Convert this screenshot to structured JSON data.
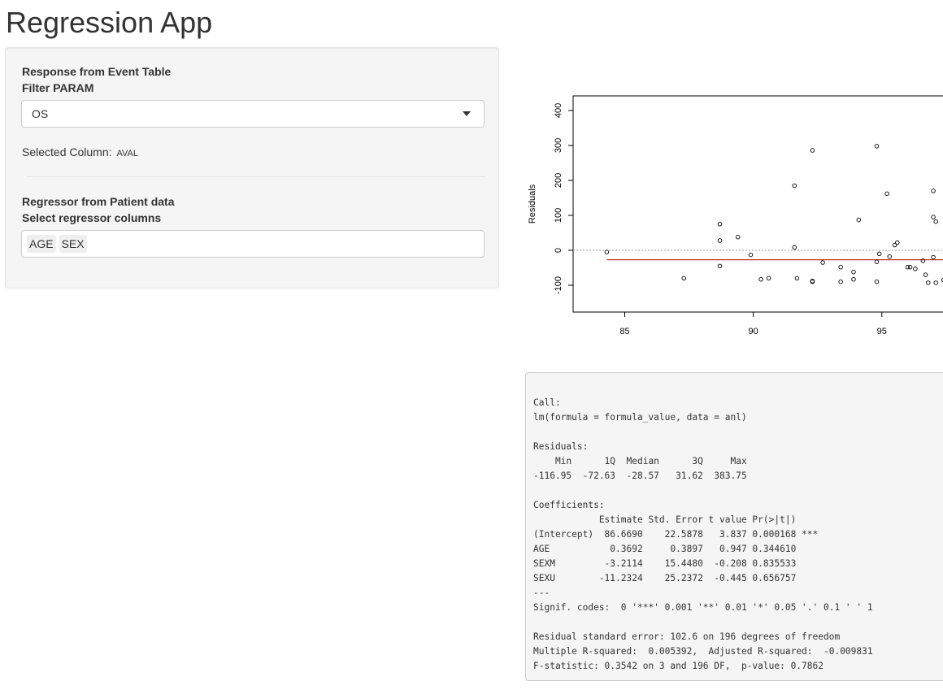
{
  "app": {
    "title": "Regression App"
  },
  "sidebar": {
    "response_label": "Response from Event Table",
    "filter_label": "Filter PARAM",
    "filter_value": "OS",
    "selected_column_label": "Selected Column:",
    "selected_column_value": "AVAL",
    "regressor_label": "Regressor from Patient data",
    "regressor_select_label": "Select regressor columns",
    "regressor_tags": [
      "AGE",
      "SEX"
    ]
  },
  "chart_data": {
    "type": "scatter",
    "title": "",
    "xlabel": "",
    "ylabel": "Residuals",
    "xlim": [
      83,
      97.5
    ],
    "ylim": [
      -130,
      450
    ],
    "x_ticks": [
      85,
      90,
      95
    ],
    "y_ticks": [
      -100,
      0,
      100,
      200,
      300,
      400
    ],
    "reference_line_y": 0,
    "smooth_line_y": -27,
    "series": [
      {
        "points": [
          [
            84.3,
            -5
          ],
          [
            87.3,
            -80
          ],
          [
            88.7,
            75
          ],
          [
            88.7,
            28
          ],
          [
            88.7,
            -45
          ],
          [
            89.4,
            38
          ],
          [
            89.9,
            -13
          ],
          [
            90.3,
            -83
          ],
          [
            90.6,
            -80
          ],
          [
            91.6,
            185
          ],
          [
            91.6,
            8
          ],
          [
            91.7,
            -80
          ],
          [
            92.3,
            286
          ],
          [
            92.3,
            -88
          ],
          [
            92.3,
            -90
          ],
          [
            92.7,
            -35
          ],
          [
            93.4,
            -48
          ],
          [
            93.4,
            -90
          ],
          [
            93.9,
            -62
          ],
          [
            93.9,
            -83
          ],
          [
            94.1,
            87
          ],
          [
            94.8,
            298
          ],
          [
            94.8,
            -90
          ],
          [
            94.8,
            -33
          ],
          [
            94.9,
            -10
          ],
          [
            95.2,
            162
          ],
          [
            95.3,
            -18
          ],
          [
            95.5,
            15
          ],
          [
            95.6,
            22
          ],
          [
            96.0,
            -48
          ],
          [
            96.1,
            -48
          ],
          [
            96.3,
            -53
          ],
          [
            96.6,
            -30
          ],
          [
            96.7,
            -70
          ],
          [
            96.8,
            -93
          ],
          [
            97.0,
            170
          ],
          [
            97.0,
            95
          ],
          [
            97.0,
            -20
          ],
          [
            97.1,
            -93
          ],
          [
            97.1,
            82
          ],
          [
            97.4,
            -85
          ]
        ]
      }
    ]
  },
  "summary": {
    "text": "Call:\nlm(formula = formula_value, data = anl)\n\nResiduals:\n    Min      1Q  Median      3Q     Max \n-116.95  -72.63  -28.57   31.62  383.75 \n\nCoefficients:\n            Estimate Std. Error t value Pr(>|t|)    \n(Intercept)  86.6690    22.5878   3.837 0.000168 ***\nAGE           0.3692     0.3897   0.947 0.344610    \nSEXM         -3.2114    15.4480  -0.208 0.835533    \nSEXU        -11.2324    25.2372  -0.445 0.656757    \n---\nSignif. codes:  0 '***' 0.001 '**' 0.01 '*' 0.05 '.' 0.1 ' ' 1\n\nResidual standard error: 102.6 on 196 degrees of freedom\nMultiple R-squared:  0.005392,\tAdjusted R-squared:  -0.009831 \nF-statistic: 0.3542 on 3 and 196 DF,  p-value: 0.7862"
  }
}
